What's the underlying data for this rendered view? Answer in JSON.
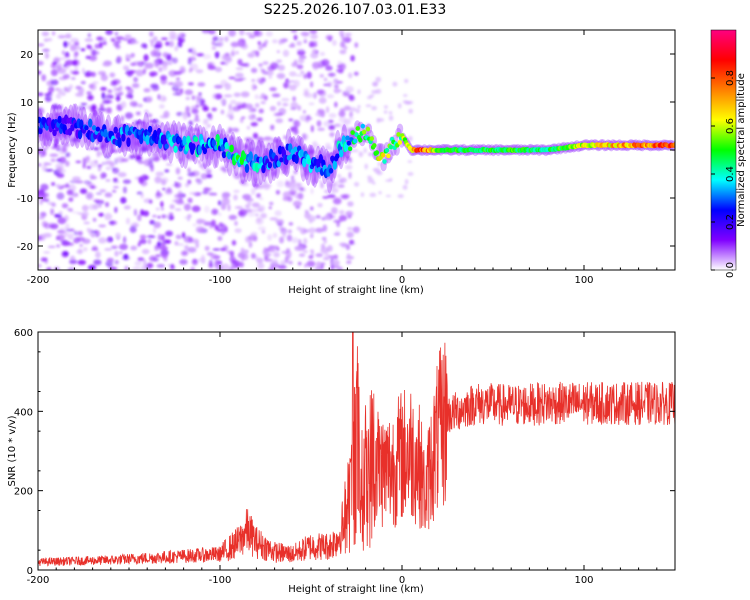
{
  "title": "S225.2026.107.03.01.E33",
  "chart_data": [
    {
      "type": "heatmap",
      "title": "S225.2026.107.03.01.E33",
      "xlabel": "Height of straight line (km)",
      "ylabel": "Frequency (Hz)",
      "xlim": [
        -200,
        150
      ],
      "ylim": [
        -25,
        25
      ],
      "xticks": [
        -200,
        -100,
        0,
        100
      ],
      "yticks": [
        -20,
        -10,
        0,
        10,
        20
      ],
      "grid": false,
      "colorbar": {
        "label": "Normalized spectral amplitude",
        "range": [
          0,
          1
        ],
        "ticks": [
          0.0,
          0.2,
          0.4,
          0.6,
          0.8
        ],
        "tick_labels": [
          "0.0",
          "0.2",
          "0.4",
          "0.6",
          "0.8"
        ],
        "colors": [
          "#ffffff",
          "#8000ff",
          "#0000ff",
          "#00ffff",
          "#00ff00",
          "#ffff00",
          "#ff8000",
          "#ff0000",
          "#ff0080"
        ]
      },
      "ridge": {
        "description_free_points_x": [
          -180,
          -160,
          -140,
          -120,
          -100,
          -90,
          -80,
          -70,
          -60,
          -50,
          -45,
          -40,
          -35,
          -30,
          -25,
          -20,
          -15,
          -10,
          -5,
          0,
          5,
          10,
          20,
          40,
          60,
          80,
          100,
          120,
          150
        ],
        "frequency_hz": [
          5,
          3,
          3,
          1,
          1,
          -2,
          -3,
          -2,
          0,
          -3,
          -3,
          -5,
          0,
          1,
          3,
          4,
          0,
          -2,
          1,
          3,
          0,
          0,
          0,
          0,
          0,
          0,
          1,
          1,
          1
        ],
        "amplitude": [
          0.25,
          0.3,
          0.3,
          0.35,
          0.4,
          0.45,
          0.35,
          0.3,
          0.3,
          0.35,
          0.3,
          0.3,
          0.35,
          0.4,
          0.5,
          0.55,
          0.55,
          0.6,
          0.5,
          0.55,
          0.6,
          0.85,
          0.5,
          0.45,
          0.5,
          0.45,
          0.6,
          0.7,
          0.8
        ]
      }
    },
    {
      "type": "line",
      "xlabel": "Height of straight line (km)",
      "ylabel": "SNR (10 * v/v)",
      "xlim": [
        -200,
        150
      ],
      "ylim": [
        0,
        600
      ],
      "xticks": [
        -200,
        -100,
        0,
        100
      ],
      "yticks": [
        0,
        200,
        400,
        600
      ],
      "grid": false,
      "series": [
        {
          "name": "SNR",
          "color": "#e8302a",
          "envelope_x": [
            -200,
            -160,
            -120,
            -100,
            -90,
            -85,
            -80,
            -70,
            -60,
            -50,
            -40,
            -35,
            -30,
            -27,
            -25,
            -22,
            -20,
            -15,
            -10,
            -5,
            0,
            5,
            10,
            13,
            15,
            20,
            25,
            30,
            40,
            60,
            80,
            100,
            120,
            150
          ],
          "envelope_y": [
            20,
            25,
            35,
            40,
            70,
            100,
            70,
            45,
            40,
            60,
            60,
            80,
            150,
            220,
            350,
            200,
            240,
            280,
            250,
            260,
            290,
            300,
            260,
            180,
            250,
            340,
            390,
            400,
            420,
            415,
            420,
            420,
            420,
            420
          ],
          "spikes": [
            {
              "x": -27,
              "y": 600
            },
            {
              "x": -26,
              "y": 460
            }
          ]
        }
      ]
    }
  ]
}
